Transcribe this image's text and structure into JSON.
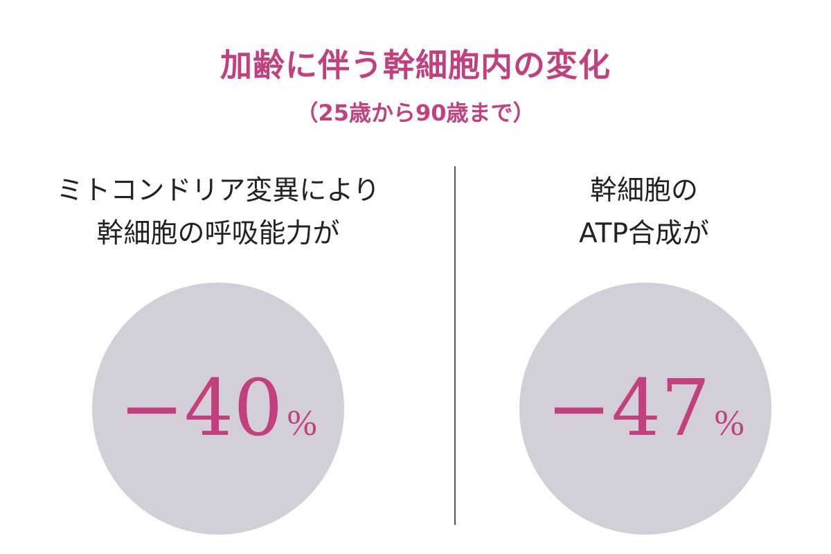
{
  "title": "加齢に伴う幹細胞内の変化",
  "subtitle": "（25歳から90歳まで）",
  "left": {
    "line1": "ミトコンドリア変異により",
    "line2": "幹細胞の呼吸能力が",
    "value": "−40",
    "unit": "%"
  },
  "right": {
    "line1": "幹細胞の",
    "line2": "ATP合成が",
    "value": "−47",
    "unit": "%"
  },
  "colors": {
    "accent": "#c2407e",
    "circle": "#d3cfd8"
  }
}
